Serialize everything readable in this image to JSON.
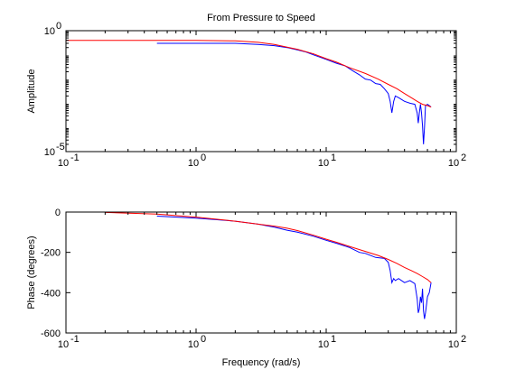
{
  "chart_data": [
    {
      "type": "line",
      "title": "From Pressure to Speed",
      "xlabel": "",
      "ylabel": "Amplitude",
      "x_scale": "log",
      "y_scale": "log",
      "xlim": [
        0.1,
        100
      ],
      "ylim": [
        1e-05,
        1
      ],
      "x_ticks": [
        {
          "value": 0.1,
          "base": "10",
          "exp": "-1"
        },
        {
          "value": 1,
          "base": "10",
          "exp": "0"
        },
        {
          "value": 10,
          "base": "10",
          "exp": "1"
        },
        {
          "value": 100,
          "base": "10",
          "exp": "2"
        }
      ],
      "y_ticks": [
        {
          "value": 1e-05,
          "base": "10",
          "exp": "-5"
        },
        {
          "value": 1,
          "base": "10",
          "exp": "0"
        }
      ],
      "grid": false,
      "series": [
        {
          "color": "#0000ff",
          "points": [
            [
              0.5,
              0.3
            ],
            [
              1,
              0.3
            ],
            [
              2,
              0.3
            ],
            [
              3,
              0.27
            ],
            [
              4,
              0.24
            ],
            [
              5,
              0.2
            ],
            [
              6,
              0.16
            ],
            [
              7,
              0.13
            ],
            [
              8,
              0.1
            ],
            [
              10,
              0.065
            ],
            [
              12,
              0.045
            ],
            [
              14,
              0.035
            ],
            [
              16,
              0.022
            ],
            [
              18,
              0.015
            ],
            [
              20,
              0.01
            ],
            [
              22,
              0.009
            ],
            [
              24,
              0.0065
            ],
            [
              26,
              0.006
            ],
            [
              28,
              0.004
            ],
            [
              30,
              0.0025
            ],
            [
              31,
              0.0012
            ],
            [
              32,
              0.0004
            ],
            [
              33,
              0.0012
            ],
            [
              34,
              0.002
            ],
            [
              36,
              0.0017
            ],
            [
              40,
              0.0012
            ],
            [
              44,
              0.001
            ],
            [
              48,
              0.0009
            ],
            [
              50,
              0.0004
            ],
            [
              51,
              0.00015
            ],
            [
              52,
              0.0004
            ],
            [
              53,
              0.0009
            ],
            [
              54,
              0.0004
            ],
            [
              55,
              0.00012
            ],
            [
              56,
              2e-05
            ],
            [
              57,
              0.0001
            ],
            [
              58,
              0.0008
            ],
            [
              60,
              0.0009
            ],
            [
              62,
              0.0008
            ],
            [
              64,
              0.0007
            ]
          ]
        },
        {
          "color": "#ff0000",
          "points": [
            [
              0.1,
              0.4
            ],
            [
              0.5,
              0.4
            ],
            [
              1,
              0.4
            ],
            [
              2,
              0.38
            ],
            [
              3,
              0.33
            ],
            [
              4,
              0.27
            ],
            [
              5,
              0.21
            ],
            [
              6,
              0.17
            ],
            [
              8,
              0.11
            ],
            [
              10,
              0.07
            ],
            [
              12,
              0.05
            ],
            [
              15,
              0.03
            ],
            [
              20,
              0.017
            ],
            [
              25,
              0.01
            ],
            [
              30,
              0.006
            ],
            [
              35,
              0.004
            ],
            [
              40,
              0.0025
            ],
            [
              45,
              0.0017
            ],
            [
              50,
              0.0012
            ],
            [
              55,
              0.0009
            ],
            [
              60,
              0.0008
            ],
            [
              64,
              0.0007
            ]
          ]
        }
      ]
    },
    {
      "type": "line",
      "title": "",
      "xlabel": "Frequency (rad/s)",
      "ylabel": "Phase (degrees)",
      "x_scale": "log",
      "y_scale": "linear",
      "xlim": [
        0.1,
        100
      ],
      "ylim": [
        -600,
        0
      ],
      "x_ticks": [
        {
          "value": 0.1,
          "base": "10",
          "exp": "-1"
        },
        {
          "value": 1,
          "base": "10",
          "exp": "0"
        },
        {
          "value": 10,
          "base": "10",
          "exp": "1"
        },
        {
          "value": 100,
          "base": "10",
          "exp": "2"
        }
      ],
      "y_ticks": [
        {
          "value": 0,
          "label": "0"
        },
        {
          "value": -200,
          "label": "-200"
        },
        {
          "value": -400,
          "label": "-400"
        },
        {
          "value": -600,
          "label": "-600"
        }
      ],
      "grid": false,
      "series": [
        {
          "color": "#0000ff",
          "points": [
            [
              0.5,
              -20
            ],
            [
              1,
              -30
            ],
            [
              2,
              -45
            ],
            [
              3,
              -60
            ],
            [
              4,
              -75
            ],
            [
              5,
              -90
            ],
            [
              6,
              -100
            ],
            [
              8,
              -120
            ],
            [
              10,
              -140
            ],
            [
              12,
              -155
            ],
            [
              15,
              -175
            ],
            [
              18,
              -200
            ],
            [
              20,
              -205
            ],
            [
              24,
              -225
            ],
            [
              28,
              -230
            ],
            [
              30,
              -250
            ],
            [
              31,
              -290
            ],
            [
              32,
              -350
            ],
            [
              33,
              -330
            ],
            [
              34,
              -340
            ],
            [
              36,
              -330
            ],
            [
              40,
              -350
            ],
            [
              44,
              -340
            ],
            [
              48,
              -355
            ],
            [
              50,
              -430
            ],
            [
              51,
              -500
            ],
            [
              52,
              -480
            ],
            [
              53,
              -420
            ],
            [
              54,
              -450
            ],
            [
              55,
              -380
            ],
            [
              56,
              -490
            ],
            [
              57,
              -530
            ],
            [
              58,
              -500
            ],
            [
              60,
              -420
            ],
            [
              62,
              -400
            ],
            [
              64,
              -350
            ]
          ]
        },
        {
          "color": "#ff0000",
          "points": [
            [
              0.2,
              -2
            ],
            [
              0.5,
              -10
            ],
            [
              1,
              -25
            ],
            [
              2,
              -45
            ],
            [
              3,
              -60
            ],
            [
              4,
              -70
            ],
            [
              5,
              -80
            ],
            [
              6,
              -92
            ],
            [
              8,
              -115
            ],
            [
              10,
              -135
            ],
            [
              12,
              -150
            ],
            [
              15,
              -170
            ],
            [
              20,
              -195
            ],
            [
              25,
              -215
            ],
            [
              30,
              -235
            ],
            [
              35,
              -255
            ],
            [
              40,
              -275
            ],
            [
              45,
              -290
            ],
            [
              50,
              -305
            ],
            [
              55,
              -320
            ],
            [
              60,
              -335
            ],
            [
              64,
              -350
            ]
          ]
        }
      ]
    }
  ]
}
